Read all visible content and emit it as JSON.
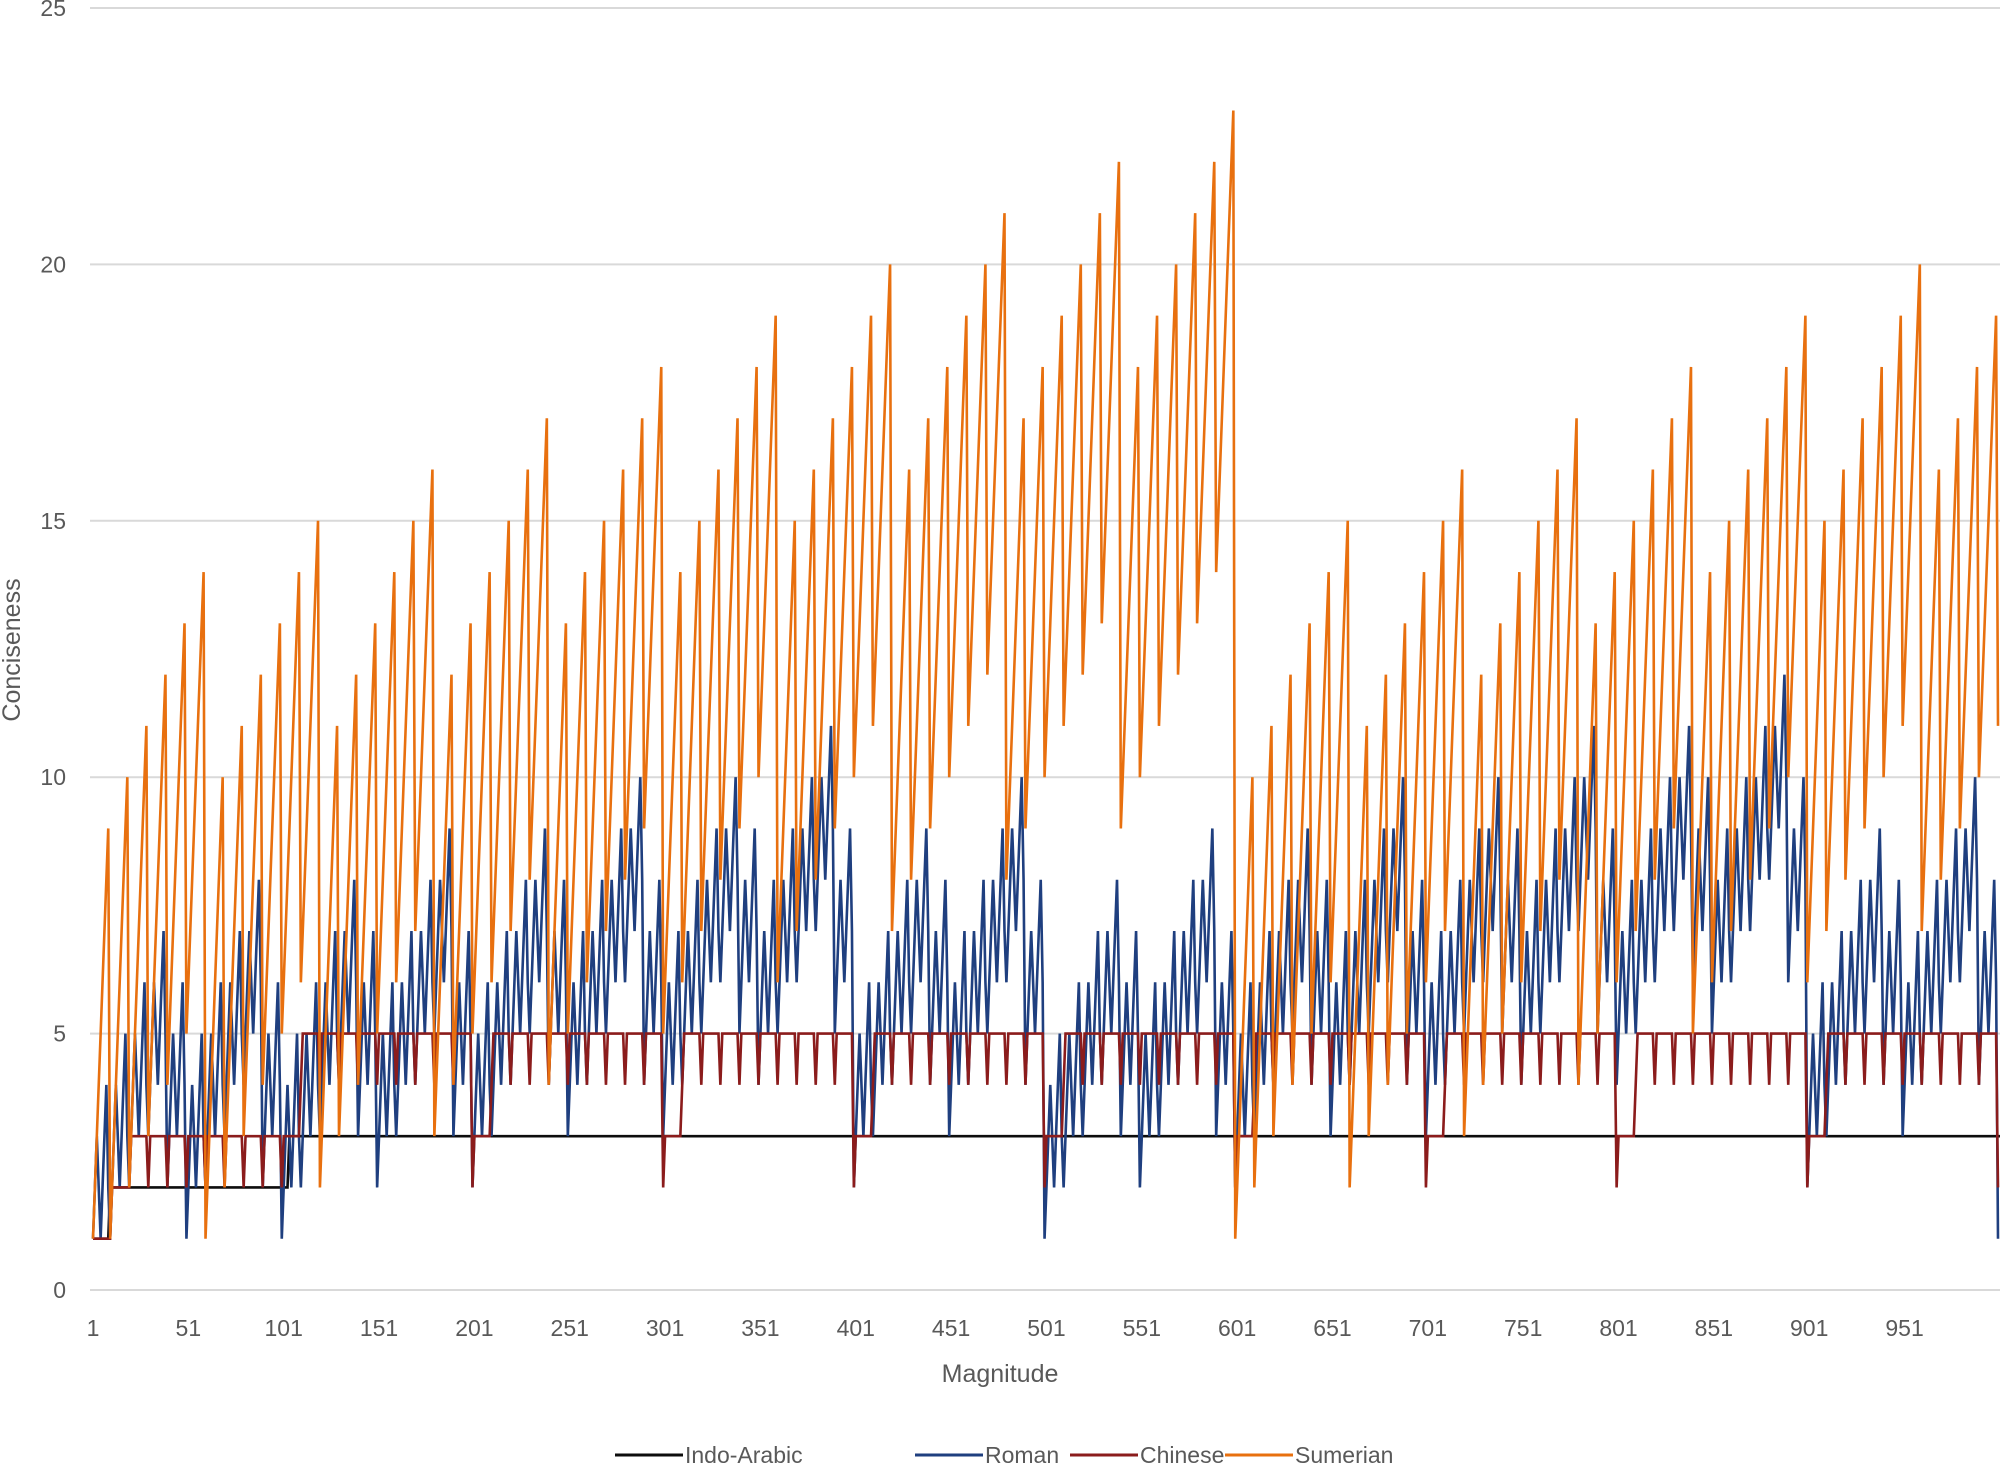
{
  "chart_data": {
    "type": "line",
    "title": "",
    "xlabel": "Magnitude",
    "ylabel": "Conciseness",
    "xlim": [
      1,
      1000
    ],
    "ylim": [
      0,
      25
    ],
    "grid": true,
    "legend_position": "bottom",
    "y_ticks": [
      "0",
      "5",
      "10",
      "15",
      "20",
      "25"
    ],
    "x_ticks": [
      "1",
      "51",
      "101",
      "151",
      "201",
      "251",
      "301",
      "351",
      "401",
      "451",
      "501",
      "551",
      "601",
      "651",
      "701",
      "751",
      "801",
      "851",
      "901",
      "951"
    ],
    "x_start": 1,
    "value_encoding": "one base-36 character per x value, x = 1..1000, chunks concatenated in order",
    "series": [
      {
        "name": "Indo-Arabic",
        "color": "#0d0d0d",
        "values": [
          "111111111",
          "2222222222222222222222222222222222222222222222222222222222222222222222222222222222222222222222",
          "3333333333333333333333333333333333333333333333333333333333333333333333333333333333333333333333333333",
          "3333333333333333333333333333333333333333333333333333333333333333333333333333333333333333333333333333",
          "3333333333333333333333333333333333333333333333333333333333333333333333333333333333333333333333333333",
          "3333333333333333333333333333333333333333333333333333333333333333333333333333333333333333333333333333",
          "3333333333333333333333333333333333333333333333333333333333333333333333333333333333333333333333333333",
          "3333333333333333333333333333333333333333333333333333333333333333333333333333333333333333333333333333",
          "3333333333333333333333333333333333333333333333333333333333333333333333333333333333333333333333333333",
          "3333333333333333333333333333333333333333333333333333333333333333333333333333333333333333333333333333",
          "3333333333333333333333333333333333333333333333333333333333333333333333333333333333333333333333333333",
          "4"
        ]
      },
      {
        "name": "Roman",
        "color": "#1f3f7f",
        "values": [
          "123212342",
          "1234323453",
          "2345434564",
          "3456545675",
          "2345434564",
          "1234323453",
          "2345434564",
          "3456545675",
          "4567656786",
          "2345434564",
          "1234323453",
          "2345434564",
          "3456545675",
          "4567656786",
          "3456545675",
          "2345434564",
          "3456545675",
          "4567656786",
          "5678767897",
          "3456545675",
          "2345434564",
          "3456545675",
          "4567656786",
          "5678767897",
          "4567656786",
          "3456545675",
          "4567656786",
          "5678767897",
          "67898789a8",
          "4567656786",
          "3456545675",
          "4567656786",
          "5678767897",
          "67898789a8",
          "5678767897",
          "4567656786",
          "5678767897",
          "67898789a8",
          "789a989ab9",
          "5678767897",
          "2345434564",
          "3456545675",
          "4567656786",
          "5678767897",
          "4567656786",
          "3456545675",
          "4567656786",
          "5678767897",
          "67898789a8",
          "4567656786",
          "1234323453",
          "2345434564",
          "3456545675",
          "4567656786",
          "3456545675",
          "2345434564",
          "3456545675",
          "4567656786",
          "5678767897",
          "3456545675",
          "2345434564",
          "3456545675",
          "4567656786",
          "5678767897",
          "4567656786",
          "3456545675",
          "4567656786",
          "5678767897",
          "67898789a8",
          "4567656786",
          "3456545675",
          "4567656786",
          "5678767897",
          "67898789a8",
          "5678767897",
          "4567656786",
          "5678767897",
          "67898789a8",
          "789a989ab9",
          "5678767897",
          "4567656786",
          "5678767897",
          "67898789a8",
          "789a989ab9",
          "67898789a8",
          "5678767897",
          "67898789a8",
          "789a989ab9",
          "89aba9abca",
          "67898789a8",
          "2345434564",
          "3456545675",
          "4567656786",
          "5678767897",
          "4567656786",
          "3456545675",
          "4567656786",
          "5678767897",
          "67898789a8",
          "4567656786",
          "1"
        ]
      },
      {
        "name": "Chinese",
        "color": "#8b1c1c",
        "values": [
          "111111111",
          "1222222222",
          "2333333333",
          "2333333333",
          "2333333333",
          "2333333333",
          "2333333333",
          "2333333333",
          "2333333333",
          "2333333333",
          "2333333333",
          "4555555555",
          "4555555555",
          "4555555555",
          "4555555555",
          "4555555555",
          "4555555555",
          "4555555555",
          "4555555555",
          "4555555555",
          "2333333333",
          "4555555555",
          "4555555555",
          "4555555555",
          "4555555555",
          "4555555555",
          "4555555555",
          "4555555555",
          "4555555555",
          "4555555555",
          "2333333333",
          "4555555555",
          "4555555555",
          "4555555555",
          "4555555555",
          "4555555555",
          "4555555555",
          "4555555555",
          "4555555555",
          "4555555555",
          "2333333333",
          "4555555555",
          "4555555555",
          "4555555555",
          "4555555555",
          "4555555555",
          "4555555555",
          "4555555555",
          "4555555555",
          "4555555555",
          "2333333333",
          "4555555555",
          "4555555555",
          "4555555555",
          "4555555555",
          "4555555555",
          "4555555555",
          "4555555555",
          "4555555555",
          "4555555555",
          "2333333333",
          "4555555555",
          "4555555555",
          "4555555555",
          "4555555555",
          "4555555555",
          "4555555555",
          "4555555555",
          "4555555555",
          "4555555555",
          "2333333333",
          "4555555555",
          "4555555555",
          "4555555555",
          "4555555555",
          "4555555555",
          "4555555555",
          "4555555555",
          "4555555555",
          "4555555555",
          "2333333333",
          "4555555555",
          "4555555555",
          "4555555555",
          "4555555555",
          "4555555555",
          "4555555555",
          "4555555555",
          "4555555555",
          "4555555555",
          "2333333333",
          "4555555555",
          "4555555555",
          "4555555555",
          "4555555555",
          "4555555555",
          "4555555555",
          "4555555555",
          "4555555555",
          "4555555555",
          "2"
        ]
      },
      {
        "name": "Sumerian",
        "color": "#e8700f",
        "values": [
          "123456789",
          "123456789a",
          "23456789ab",
          "3456789abc",
          "456789abcd",
          "56789abcde",
          "123456789a",
          "23456789ab",
          "3456789abc",
          "456789abcd",
          "56789abcde",
          "6789abcdef",
          "23456789ab",
          "3456789abc",
          "456789abcd",
          "56789abcde",
          "6789abcdef",
          "789abcdefg",
          "3456789abc",
          "456789abcd",
          "56789abcde",
          "6789abcdef",
          "789abcdefg",
          "89abcdefgh",
          "456789abcd",
          "56789abcde",
          "6789abcdef",
          "789abcdefg",
          "89abcdefgh",
          "9abcdefghi",
          "56789abcde",
          "6789abcdef",
          "789abcdefg",
          "89abcdefgh",
          "9abcdefghi",
          "abcdefghij",
          "6789abcdef",
          "789abcdefg",
          "89abcdefgh",
          "9abcdefghi",
          "abcdefghij",
          "bcdefghijk",
          "789abcdefg",
          "89abcdefgh",
          "9abcdefghi",
          "abcdefghij",
          "bcdefghijk",
          "cdefghijkl",
          "89abcdefgh",
          "9abcdefghi",
          "abcdefghij",
          "bcdefghijk",
          "cdefghijkl",
          "defghijklm",
          "9abcdefghi",
          "abcdefghij",
          "bcdefghijk",
          "cdefghijkl",
          "defghijklm",
          "efghijklmn",
          "123456789a",
          "23456789ab",
          "3456789abc",
          "456789abcd",
          "56789abcde",
          "6789abcdef",
          "23456789ab",
          "3456789abc",
          "456789abcd",
          "56789abcde",
          "6789abcdef",
          "789abcdefg",
          "3456789abc",
          "456789abcd",
          "56789abcde",
          "6789abcdef",
          "789abcdefg",
          "89abcdefgh",
          "456789abcd",
          "56789abcde",
          "6789abcdef",
          "789abcdefg",
          "89abcdefgh",
          "9abcdefghi",
          "56789abcde",
          "6789abcdef",
          "789abcdefg",
          "89abcdefgh",
          "9abcdefghi",
          "abcdefghij",
          "6789abcdef",
          "789abcdefg",
          "89abcdefgh",
          "9abcdefghi",
          "abcdefghij",
          "bcdefghijk",
          "789abcdefg",
          "89abcdefgh",
          "9abcdefghi",
          "abcdefghij",
          "b"
        ]
      }
    ]
  }
}
